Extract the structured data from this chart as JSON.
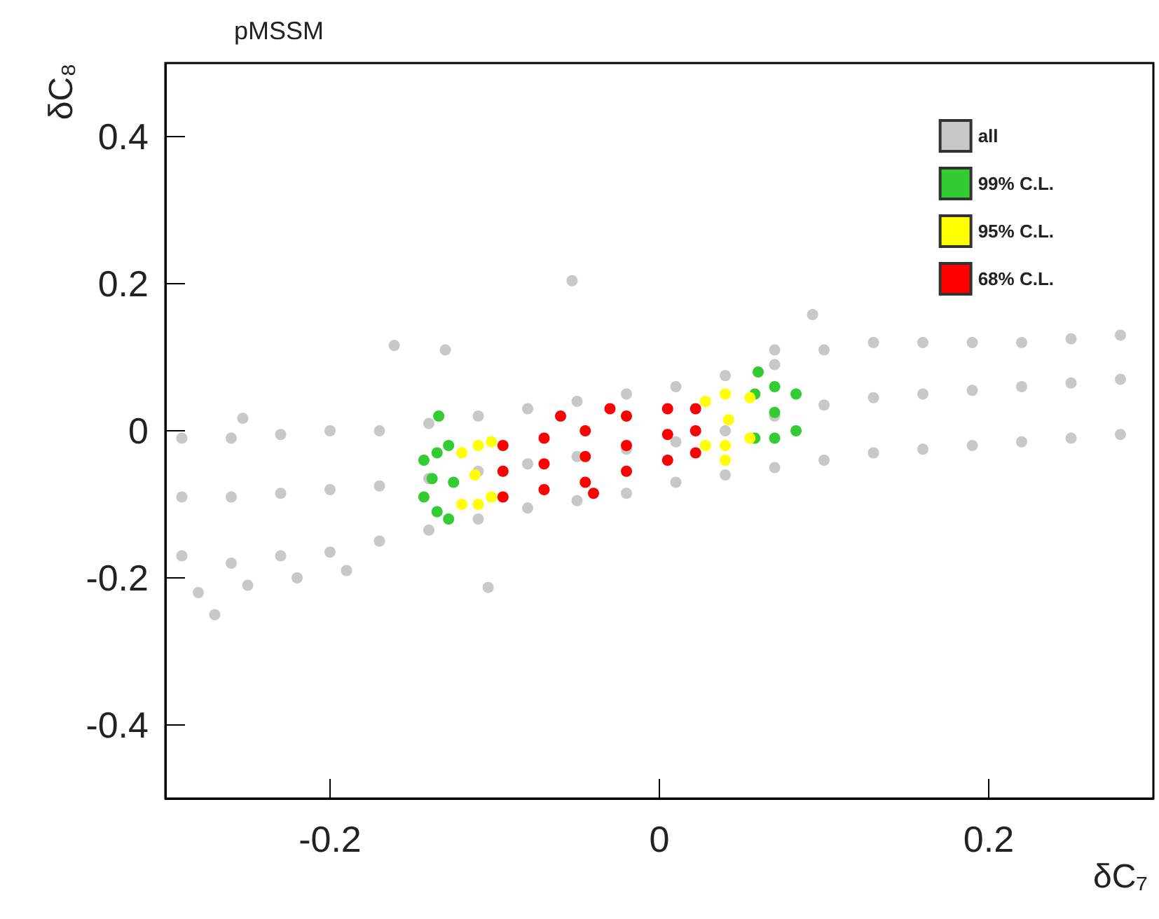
{
  "chart_data": {
    "type": "scatter",
    "title": "pMSSM",
    "xlabel": "δC₇",
    "ylabel": "δC₈",
    "xlim": [
      -0.3,
      0.3
    ],
    "xticks": [
      -0.2,
      0,
      0.2
    ],
    "ylim": [
      -0.5,
      0.5
    ],
    "yticks": [
      -0.4,
      -0.2,
      0,
      0.2,
      0.4
    ],
    "grid": false,
    "legend": "top right",
    "marker": "circle",
    "series": [
      {
        "name": "all",
        "color": "#c8c8c8",
        "x": [
          -0.29,
          -0.29,
          -0.29,
          -0.26,
          -0.26,
          -0.26,
          -0.23,
          -0.23,
          -0.23,
          -0.2,
          -0.2,
          -0.2,
          -0.17,
          -0.17,
          -0.17,
          -0.14,
          -0.14,
          -0.14,
          -0.11,
          -0.11,
          -0.11,
          -0.08,
          -0.08,
          -0.08,
          -0.05,
          -0.05,
          -0.05,
          -0.02,
          -0.02,
          -0.02,
          0.01,
          0.01,
          0.01,
          0.04,
          0.04,
          0.04,
          0.07,
          0.07,
          0.07,
          0.1,
          0.1,
          0.1,
          0.13,
          0.13,
          0.13,
          0.16,
          0.16,
          0.16,
          0.19,
          0.19,
          0.19,
          0.22,
          0.22,
          0.22,
          0.25,
          0.25,
          0.25,
          0.28,
          0.28,
          0.28,
          -0.28,
          -0.27,
          -0.25,
          -0.22,
          -0.19,
          -0.053,
          -0.161,
          -0.13,
          -0.104,
          0.07,
          0.093,
          -0.253
        ],
        "values": [
          -0.01,
          -0.09,
          -0.17,
          -0.01,
          -0.09,
          -0.18,
          -0.005,
          -0.085,
          -0.17,
          0.0,
          -0.08,
          -0.165,
          0.0,
          -0.075,
          -0.15,
          0.01,
          -0.065,
          -0.135,
          0.02,
          -0.055,
          -0.12,
          0.03,
          -0.045,
          -0.105,
          0.04,
          -0.035,
          -0.095,
          0.05,
          -0.025,
          -0.085,
          0.06,
          -0.015,
          -0.07,
          0.075,
          0.0,
          -0.06,
          0.09,
          0.02,
          -0.05,
          0.11,
          0.035,
          -0.04,
          0.12,
          0.045,
          -0.03,
          0.12,
          0.05,
          -0.025,
          0.12,
          0.055,
          -0.02,
          0.12,
          0.06,
          -0.015,
          0.125,
          0.065,
          -0.01,
          0.13,
          0.07,
          -0.005,
          -0.22,
          -0.25,
          -0.21,
          -0.2,
          -0.19,
          0.204,
          0.116,
          0.11,
          -0.213,
          0.11,
          0.158,
          0.017
        ]
      },
      {
        "name": "99% C.L.",
        "color": "#33cc33",
        "x": [
          -0.143,
          -0.143,
          -0.135,
          -0.135,
          -0.128,
          -0.128,
          -0.138,
          -0.125,
          0.058,
          0.058,
          0.07,
          0.07,
          0.083,
          0.083,
          0.07,
          0.06,
          -0.134
        ],
        "values": [
          -0.04,
          -0.09,
          -0.03,
          -0.11,
          -0.02,
          -0.12,
          -0.065,
          -0.07,
          -0.01,
          0.05,
          0.06,
          -0.01,
          0.0,
          0.05,
          0.025,
          0.08,
          0.02
        ]
      },
      {
        "name": "95% C.L.",
        "color": "#ffff00",
        "x": [
          -0.12,
          -0.12,
          -0.11,
          -0.11,
          -0.102,
          -0.102,
          -0.112,
          0.028,
          0.028,
          0.04,
          0.04,
          0.055,
          0.055,
          0.042,
          0.04
        ],
        "values": [
          -0.03,
          -0.1,
          -0.02,
          -0.1,
          -0.015,
          -0.09,
          -0.06,
          -0.02,
          0.04,
          0.05,
          -0.02,
          0.045,
          -0.01,
          0.015,
          -0.04
        ]
      },
      {
        "name": "68% C.L.",
        "color": "#ff0000",
        "x": [
          -0.095,
          -0.095,
          -0.095,
          -0.07,
          -0.07,
          -0.07,
          -0.045,
          -0.045,
          -0.045,
          -0.02,
          -0.02,
          -0.02,
          0.005,
          0.005,
          0.005,
          0.022,
          0.022,
          0.022,
          -0.06,
          -0.03,
          -0.04
        ],
        "values": [
          -0.02,
          -0.055,
          -0.09,
          -0.01,
          -0.045,
          -0.08,
          0.0,
          -0.035,
          -0.07,
          0.02,
          -0.02,
          -0.055,
          0.03,
          -0.005,
          -0.04,
          0.03,
          0.0,
          -0.03,
          0.02,
          0.03,
          -0.085
        ]
      }
    ]
  }
}
